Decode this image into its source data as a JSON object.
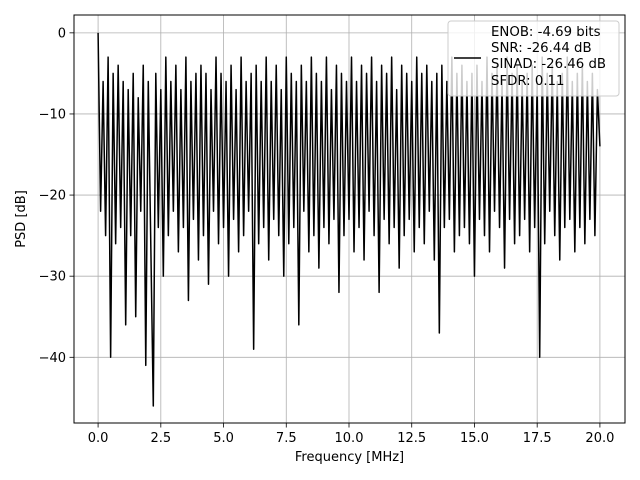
{
  "chart_data": {
    "type": "line",
    "xlabel": "Frequency [MHz]",
    "ylabel": "PSD [dB]",
    "xlim": [
      -0.96,
      21.0
    ],
    "ylim": [
      -48.1,
      2.2
    ],
    "xticks": [
      {
        "value": 0,
        "label": "0.0"
      },
      2.5,
      {
        "value": 5,
        "label": "5.0"
      },
      7.5,
      {
        "value": 10,
        "label": "10.0"
      },
      12.5,
      {
        "value": 15,
        "label": "15.0"
      },
      17.5,
      {
        "value": 20,
        "label": "20.0"
      }
    ],
    "yticks": [
      {
        "value": -40,
        "label": "−40"
      },
      {
        "value": -30,
        "label": "−30"
      },
      {
        "value": -20,
        "label": "−20"
      },
      {
        "value": -10,
        "label": "−10"
      },
      0
    ],
    "grid": true,
    "legend": "upper right",
    "x": [
      0.0,
      0.1,
      0.2,
      0.3,
      0.4,
      0.5,
      0.6,
      0.7,
      0.8,
      0.9,
      1.0,
      1.1,
      1.2,
      1.3,
      1.4,
      1.5,
      1.6,
      1.7,
      1.8,
      1.9,
      2.0,
      2.1,
      2.2,
      2.3,
      2.4,
      2.5,
      2.6,
      2.7,
      2.8,
      2.9,
      3.0,
      3.1,
      3.2,
      3.3,
      3.4,
      3.5,
      3.6,
      3.7,
      3.8,
      3.9,
      4.0,
      4.1,
      4.2,
      4.3,
      4.4,
      4.5,
      4.6,
      4.7,
      4.8,
      4.9,
      5.0,
      5.1,
      5.2,
      5.3,
      5.4,
      5.5,
      5.6,
      5.7,
      5.8,
      5.9,
      6.0,
      6.1,
      6.2,
      6.3,
      6.4,
      6.5,
      6.6,
      6.7,
      6.8,
      6.9,
      7.0,
      7.1,
      7.2,
      7.3,
      7.4,
      7.5,
      7.6,
      7.7,
      7.8,
      7.9,
      8.0,
      8.1,
      8.2,
      8.3,
      8.4,
      8.5,
      8.6,
      8.7,
      8.8,
      8.9,
      9.0,
      9.1,
      9.2,
      9.3,
      9.4,
      9.5,
      9.6,
      9.7,
      9.8,
      9.9,
      10.0,
      10.1,
      10.2,
      10.3,
      10.4,
      10.5,
      10.6,
      10.7,
      10.8,
      10.9,
      11.0,
      11.1,
      11.2,
      11.3,
      11.4,
      11.5,
      11.6,
      11.7,
      11.8,
      11.9,
      12.0,
      12.1,
      12.2,
      12.3,
      12.4,
      12.5,
      12.6,
      12.7,
      12.8,
      12.9,
      13.0,
      13.1,
      13.2,
      13.3,
      13.4,
      13.5,
      13.6,
      13.7,
      13.8,
      13.9,
      14.0,
      14.1,
      14.2,
      14.3,
      14.4,
      14.5,
      14.6,
      14.7,
      14.8,
      14.9,
      15.0,
      15.1,
      15.2,
      15.3,
      15.4,
      15.5,
      15.6,
      15.7,
      15.8,
      15.9,
      16.0,
      16.1,
      16.2,
      16.3,
      16.4,
      16.5,
      16.6,
      16.7,
      16.8,
      16.9,
      17.0,
      17.1,
      17.2,
      17.3,
      17.4,
      17.5,
      17.6,
      17.7,
      17.8,
      17.9,
      18.0,
      18.1,
      18.2,
      18.3,
      18.4,
      18.5,
      18.6,
      18.7,
      18.8,
      18.9,
      19.0,
      19.1,
      19.2,
      19.3,
      19.4,
      19.5,
      19.6,
      19.7,
      19.8,
      19.9,
      20.0
    ],
    "series": [
      {
        "name": "ENOB: -4.69 bits\nSNR: -26.44 dB\nSINAD: -26.46 dB\nSFDR: 0.11",
        "color": "#000000",
        "values": [
          0,
          -22,
          -6,
          -25,
          -3,
          -40,
          -5,
          -26,
          -4,
          -24,
          -6,
          -36,
          -7,
          -25,
          -5,
          -35,
          -8,
          -22,
          -4,
          -41,
          -6,
          -26,
          -46,
          -5,
          -24,
          -7,
          -30,
          -3,
          -25,
          -6,
          -22,
          -4,
          -27,
          -7,
          -24,
          -3,
          -33,
          -6,
          -23,
          -5,
          -28,
          -4,
          -25,
          -5,
          -31,
          -7,
          -22,
          -3,
          -26,
          -5,
          -24,
          -6,
          -30,
          -4,
          -23,
          -7,
          -27,
          -3,
          -25,
          -6,
          -22,
          -5,
          -39,
          -4,
          -26,
          -6,
          -24,
          -3,
          -28,
          -6,
          -23,
          -4,
          -25,
          -7,
          -30,
          -3,
          -26,
          -5,
          -24,
          -6,
          -36,
          -4,
          -22,
          -6,
          -27,
          -3,
          -25,
          -5,
          -29,
          -6,
          -24,
          -3,
          -26,
          -7,
          -23,
          -4,
          -32,
          -5,
          -25,
          -6,
          -23,
          -3,
          -27,
          -6,
          -24,
          -4,
          -28,
          -5,
          -22,
          -3,
          -25,
          -6,
          -32,
          -4,
          -23,
          -5,
          -26,
          -3,
          -24,
          -7,
          -29,
          -4,
          -25,
          -5,
          -23,
          -6,
          -27,
          -3,
          -24,
          -5,
          -26,
          -4,
          -22,
          -6,
          -28,
          -5,
          -37,
          -4,
          -24,
          -6,
          -23,
          -3,
          -27,
          -5,
          -25,
          -4,
          -24,
          -6,
          -26,
          -5,
          -30,
          -4,
          -23,
          -6,
          -25,
          -3,
          -27,
          -5,
          -22,
          -4,
          -24,
          -6,
          -29,
          -3,
          -23,
          -5,
          -26,
          -4,
          -25,
          -6,
          -23,
          -5,
          -27,
          -4,
          -24,
          -6,
          -40,
          -3,
          -26,
          -5,
          -22,
          -4,
          -25,
          -6,
          -28,
          -5,
          -24,
          -3,
          -23,
          -6,
          -27,
          -5,
          -24,
          -4,
          -26,
          -6,
          -23,
          -5,
          -25,
          -7,
          -14
        ]
      }
    ]
  }
}
